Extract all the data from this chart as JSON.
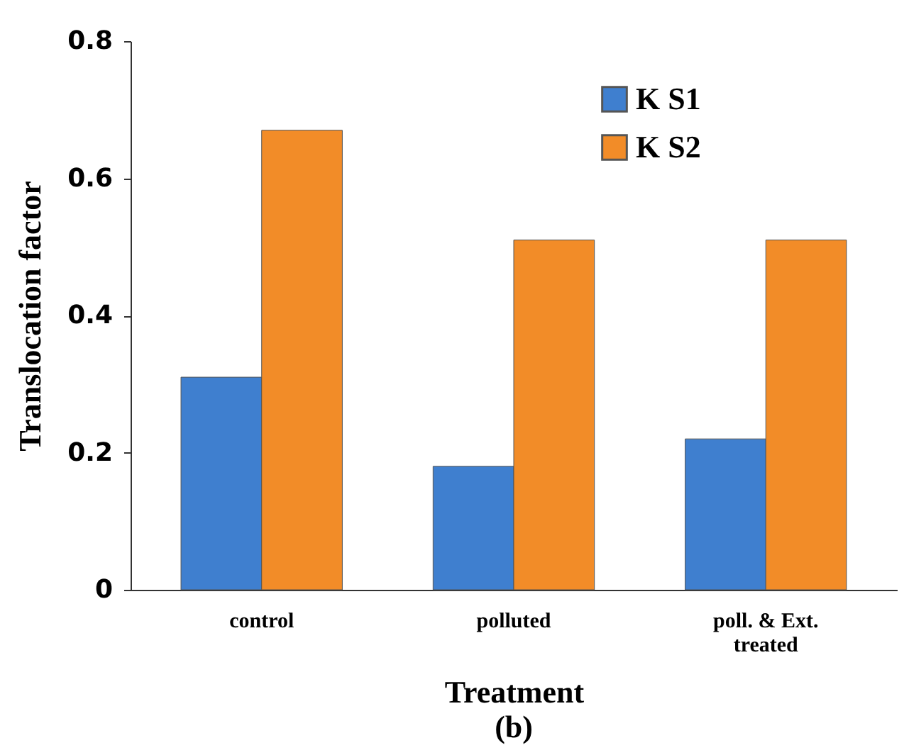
{
  "chart_data": {
    "type": "bar",
    "xlabel": "Treatment",
    "ylabel": "Translocation factor",
    "categories": [
      "control",
      "polluted",
      "poll. & Ext. treated"
    ],
    "series": [
      {
        "name": "K S1",
        "color": "#3f7fcf",
        "values": [
          0.31,
          0.18,
          0.22
        ]
      },
      {
        "name": "K S2",
        "color": "#f28c28",
        "values": [
          0.67,
          0.51,
          0.51
        ]
      }
    ],
    "ylim": [
      0,
      0.8
    ],
    "yticks": [
      0,
      0.2,
      0.4,
      0.6,
      0.8
    ],
    "grid": false,
    "legend": "top right",
    "annotations": [
      "(b)"
    ]
  }
}
